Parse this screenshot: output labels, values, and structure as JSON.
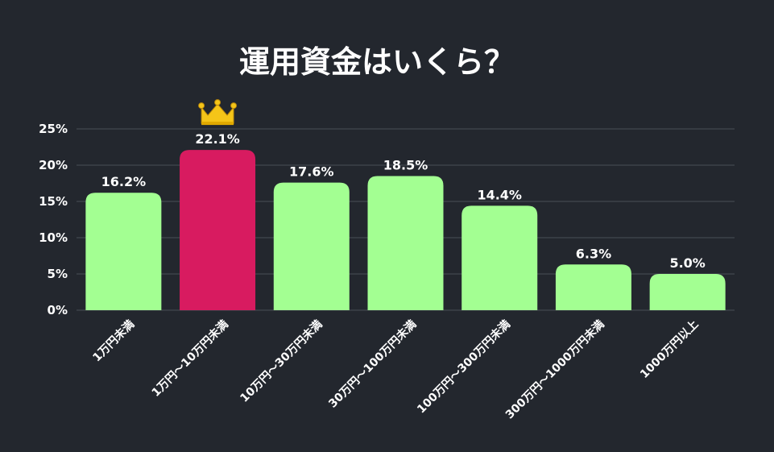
{
  "chart_data": {
    "type": "bar",
    "title": "運用資金はいくら？",
    "categories": [
      "1万円未満",
      "1万円～10万円未満",
      "10万円～30万円未満",
      "30万円～100万円未満",
      "100万円～300万円未満",
      "300万円～1000万円未満",
      "1000万円以上"
    ],
    "values": [
      16.2,
      22.1,
      17.6,
      18.5,
      14.4,
      6.3,
      5.0
    ],
    "data_labels": [
      "16.2%",
      "22.1%",
      "17.6%",
      "18.5%",
      "14.4%",
      "6.3%",
      "5.0%"
    ],
    "ylim": [
      0,
      25
    ],
    "yticks": [
      0,
      5,
      10,
      15,
      20,
      25
    ],
    "ytick_labels": [
      "0%",
      "5%",
      "10%",
      "15%",
      "20%",
      "25%"
    ],
    "grid": true,
    "highlight_index": 1,
    "highlight_icon": "crown-icon",
    "colors": {
      "background": "#23272e",
      "bar": "#a3ff92",
      "highlight": "#d81b60",
      "crown": "#f5c518",
      "text": "#ffffff",
      "grid": "#4a4f57"
    }
  }
}
